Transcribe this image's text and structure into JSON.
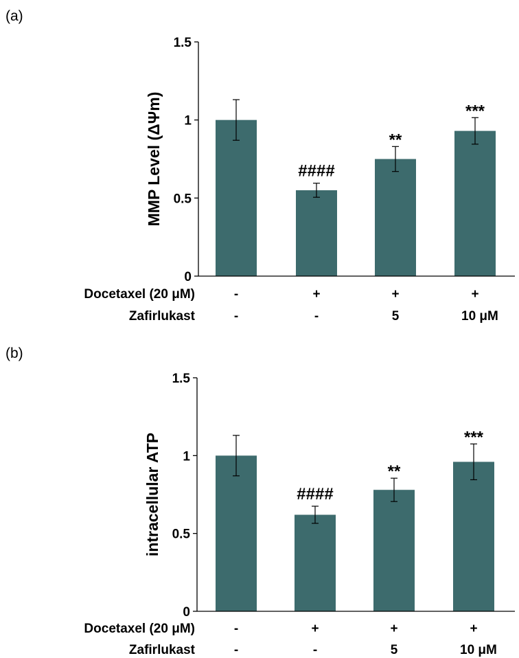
{
  "colors": {
    "bar": "#3d6b6d",
    "axis": "#000000"
  },
  "chart_data": [
    {
      "type": "bar",
      "panel_label": "(a)",
      "ylabel": "MMP Level (ΔΨm)",
      "ylim": [
        0,
        1.5
      ],
      "yticks": [
        {
          "value": 0,
          "label": "0"
        },
        {
          "value": 0.5,
          "label": "0.5"
        },
        {
          "value": 1,
          "label": "1"
        },
        {
          "value": 1.5,
          "label": "1.5"
        }
      ],
      "values": [
        1.0,
        0.55,
        0.75,
        0.93
      ],
      "errors": [
        0.13,
        0.045,
        0.08,
        0.085
      ],
      "annotations": [
        "",
        "####",
        "**",
        "***"
      ],
      "rows": [
        {
          "label": "Docetaxel (20 μM)",
          "values": [
            "-",
            "+",
            "+",
            "+"
          ]
        },
        {
          "label": "Zafirlukast",
          "values": [
            "-",
            "-",
            "5",
            "10 μM"
          ]
        }
      ]
    },
    {
      "type": "bar",
      "panel_label": "(b)",
      "ylabel": "intracellular ATP",
      "ylim": [
        0,
        1.5
      ],
      "yticks": [
        {
          "value": 0,
          "label": "0"
        },
        {
          "value": 0.5,
          "label": "0.5"
        },
        {
          "value": 1,
          "label": "1"
        },
        {
          "value": 1.5,
          "label": "1.5"
        }
      ],
      "values": [
        1.0,
        0.62,
        0.78,
        0.96
      ],
      "errors": [
        0.13,
        0.055,
        0.075,
        0.115
      ],
      "annotations": [
        "",
        "####",
        "**",
        "***"
      ],
      "rows": [
        {
          "label": "Docetaxel (20 μM)",
          "values": [
            "-",
            "+",
            "+",
            "+"
          ]
        },
        {
          "label": "Zafirlukast",
          "values": [
            "-",
            "-",
            "5",
            "10 μM"
          ]
        }
      ]
    }
  ]
}
